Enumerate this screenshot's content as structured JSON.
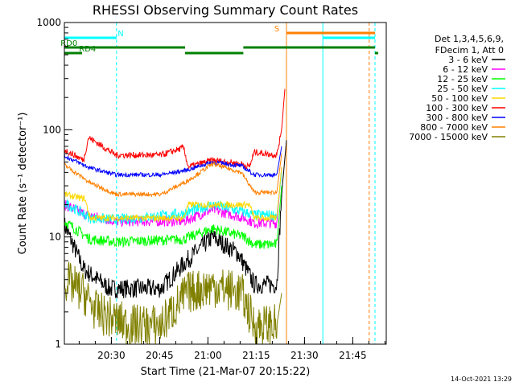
{
  "chart_data": {
    "type": "line",
    "title": "RHESSI Observing Summary Count Rates",
    "xlabel": "Start Time (21-Mar-07 20:15:22)",
    "ylabel": "Count Rate (s⁻¹ detector⁻¹)",
    "yscale": "log",
    "ylim": [
      1,
      1000
    ],
    "xlim_minutes_after_start": [
      0,
      100
    ],
    "x_ticks": [
      {
        "label": "20:30",
        "minutes": 14.6
      },
      {
        "label": "20:45",
        "minutes": 29.6
      },
      {
        "label": "21:00",
        "minutes": 44.6
      },
      {
        "label": "21:15",
        "minutes": 59.6
      },
      {
        "label": "21:30",
        "minutes": 74.6
      },
      {
        "label": "21:45",
        "minutes": 89.6
      }
    ],
    "y_ticks": [
      {
        "label": "1",
        "value": 1
      },
      {
        "label": "10",
        "value": 10
      },
      {
        "label": "100",
        "value": 100
      },
      {
        "label": "1000",
        "value": 1000
      }
    ],
    "legend_header": [
      "Det 1,3,4,5,6,9,",
      "FDecim 1, Att 0"
    ],
    "legend_placement": "right",
    "series": [
      {
        "name": "3 - 6 keV",
        "color": "#000000",
        "points": [
          [
            0,
            13
          ],
          [
            6,
            5
          ],
          [
            14,
            3.3
          ],
          [
            30,
            3.3
          ],
          [
            38,
            6
          ],
          [
            46,
            10
          ],
          [
            54,
            7
          ],
          [
            59,
            3.6
          ],
          [
            66,
            3.6
          ],
          [
            67.5,
            25
          ],
          [
            69,
            80
          ]
        ]
      },
      {
        "name": "6 - 12 keV",
        "color": "#ff00ff",
        "points": [
          [
            0,
            20
          ],
          [
            7,
            16
          ],
          [
            16,
            14
          ],
          [
            37,
            14
          ],
          [
            46,
            18
          ],
          [
            56,
            15
          ],
          [
            59,
            13.5
          ],
          [
            66,
            13.5
          ],
          [
            67.5,
            45
          ]
        ]
      },
      {
        "name": "12 - 25 keV",
        "color": "#00ff00",
        "points": [
          [
            0,
            14
          ],
          [
            8,
            9.5
          ],
          [
            16,
            9
          ],
          [
            37,
            9.5
          ],
          [
            46,
            12
          ],
          [
            56,
            10
          ],
          [
            59,
            8.5
          ],
          [
            66,
            8.5
          ],
          [
            67.5,
            30
          ]
        ]
      },
      {
        "name": "25 - 50 keV",
        "color": "#00ffff",
        "points": [
          [
            0,
            21
          ],
          [
            8,
            15
          ],
          [
            16,
            14.5
          ],
          [
            37,
            16.5
          ],
          [
            46,
            20
          ],
          [
            56,
            17
          ],
          [
            59,
            16
          ],
          [
            66,
            16
          ],
          [
            67.5,
            40
          ]
        ]
      },
      {
        "name": "50 - 100 keV",
        "color": "#ffd700",
        "points": [
          [
            0,
            25
          ],
          [
            5,
            23
          ],
          [
            6.3,
            23
          ],
          [
            8,
            15
          ],
          [
            37,
            15
          ],
          [
            38.5,
            20
          ],
          [
            55,
            20
          ],
          [
            57.5,
            20
          ],
          [
            59,
            15
          ],
          [
            66,
            15
          ],
          [
            67.5,
            45
          ]
        ]
      },
      {
        "name": "100 - 300 keV",
        "color": "#ff0000",
        "points": [
          [
            0,
            65
          ],
          [
            6,
            52
          ],
          [
            7.5,
            85
          ],
          [
            16,
            58
          ],
          [
            30,
            58
          ],
          [
            37,
            68
          ],
          [
            38.5,
            45
          ],
          [
            46,
            52
          ],
          [
            55,
            48
          ],
          [
            57.5,
            45
          ],
          [
            59,
            62
          ],
          [
            66,
            58
          ],
          [
            67.5,
            100
          ],
          [
            68.5,
            240
          ]
        ]
      },
      {
        "name": "300 - 800 keV",
        "color": "#0000ff",
        "points": [
          [
            0,
            57
          ],
          [
            8,
            44
          ],
          [
            16,
            38
          ],
          [
            30,
            38
          ],
          [
            38,
            42
          ],
          [
            46,
            50
          ],
          [
            55,
            46
          ],
          [
            59,
            38
          ],
          [
            66,
            38
          ],
          [
            67.5,
            70
          ]
        ]
      },
      {
        "name": "800 - 7000 keV",
        "color": "#ff8000",
        "points": [
          [
            0,
            47
          ],
          [
            8,
            32
          ],
          [
            16,
            25
          ],
          [
            30,
            25
          ],
          [
            38,
            33
          ],
          [
            46,
            48
          ],
          [
            55,
            40
          ],
          [
            59,
            26
          ],
          [
            66,
            26
          ],
          [
            67.5,
            60
          ]
        ]
      },
      {
        "name": "7000 - 15000 keV",
        "color": "#808000",
        "points": [
          [
            0,
            4
          ],
          [
            6,
            3
          ],
          [
            10,
            2
          ],
          [
            20,
            1.5
          ],
          [
            30,
            1.5
          ],
          [
            38,
            3
          ],
          [
            46,
            3.5
          ],
          [
            55,
            3
          ],
          [
            59,
            1.5
          ],
          [
            66,
            1.5
          ],
          [
            67.5,
            3
          ]
        ]
      }
    ],
    "status_bars": [
      {
        "label": "N",
        "label_minutes": 17.5,
        "color": "#00ffff",
        "segments": [
          [
            0,
            16.2
          ]
        ]
      },
      {
        "label": "",
        "label_minutes": null,
        "color": "#00ffff",
        "segments": [
          [
            80.3,
            96.5
          ]
        ]
      },
      {
        "label": "S",
        "label_minutes": 66.0,
        "color": "#ff8000",
        "segments": [
          [
            69.0,
            96.5
          ]
        ]
      },
      {
        "label": "RD0",
        "label_minutes": -1.2,
        "color": "#008000",
        "segments": [
          [
            0,
            37.5
          ],
          [
            55.6,
            96.5
          ]
        ]
      },
      {
        "label": "RD4",
        "label_minutes": 7.2,
        "color": "#008000",
        "segments": [
          [
            0,
            5.5
          ],
          [
            37.5,
            55.6
          ],
          [
            96.5,
            97.5
          ]
        ]
      }
    ],
    "vertical_markers": [
      {
        "minutes": 0,
        "color": "#00ffff",
        "style": "solid"
      },
      {
        "minutes": 16.2,
        "color": "#00ffff",
        "style": "dashed"
      },
      {
        "minutes": 69.0,
        "color": "#ff8000",
        "style": "solid"
      },
      {
        "minutes": 80.3,
        "color": "#00ffff",
        "style": "solid"
      },
      {
        "minutes": 94.7,
        "color": "#ff8000",
        "style": "dashed"
      },
      {
        "minutes": 96.5,
        "color": "#00ffff",
        "style": "dashed"
      }
    ],
    "footer_date": "14-Oct-2021 13:29"
  }
}
